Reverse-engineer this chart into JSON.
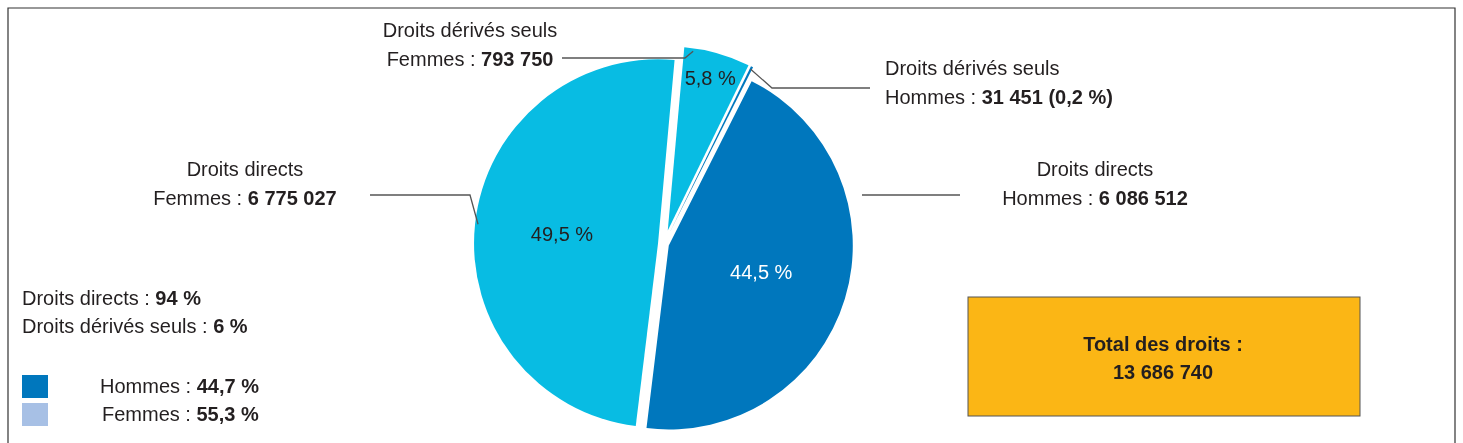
{
  "chart_data": {
    "type": "pie",
    "categories": [
      "Droits dérivés seuls\nFemmes : 793 750",
      "Droits dérivés seuls\nHommes : 31 451 (0,2 %)",
      "Droits directs\nHommes : 6 086 512",
      "Droits directs\nFemmes : 6 775 027"
    ],
    "values": [
      5.8,
      0.2,
      44.5,
      49.5
    ],
    "colors": [
      "#08bce3",
      "#0077bd",
      "#0077bd",
      "#08bce3"
    ],
    "value_labels": [
      "5,8 %",
      null,
      "44,5 %",
      "49,5 %"
    ],
    "annotations": [
      "Droits directs : 94 %",
      "Droits dérivés seuls : 6 %",
      "Hommes : 44,7 %",
      "Femmes : 55,3 %",
      "Total des droits :\n13 686 740"
    ]
  }
}
